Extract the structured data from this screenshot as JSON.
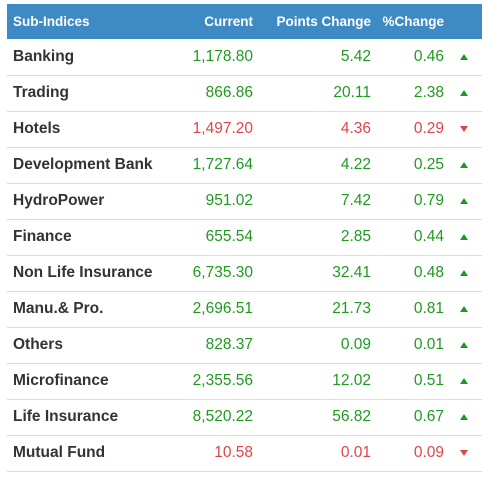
{
  "table": {
    "headers": {
      "name": "Sub-Indices",
      "current": "Current",
      "points_change": "Points Change",
      "pct_change": "%Change"
    },
    "rows": [
      {
        "name": "Banking",
        "current": "1,178.80",
        "points": "5.42",
        "pct": "0.46",
        "direction": "up"
      },
      {
        "name": "Trading",
        "current": "866.86",
        "points": "20.11",
        "pct": "2.38",
        "direction": "up"
      },
      {
        "name": "Hotels",
        "current": "1,497.20",
        "points": "4.36",
        "pct": "0.29",
        "direction": "down"
      },
      {
        "name": "Development Bank",
        "current": "1,727.64",
        "points": "4.22",
        "pct": "0.25",
        "direction": "up"
      },
      {
        "name": "HydroPower",
        "current": "951.02",
        "points": "7.42",
        "pct": "0.79",
        "direction": "up"
      },
      {
        "name": "Finance",
        "current": "655.54",
        "points": "2.85",
        "pct": "0.44",
        "direction": "up"
      },
      {
        "name": "Non Life Insurance",
        "current": "6,735.30",
        "points": "32.41",
        "pct": "0.48",
        "direction": "up"
      },
      {
        "name": "Manu.& Pro.",
        "current": "2,696.51",
        "points": "21.73",
        "pct": "0.81",
        "direction": "up"
      },
      {
        "name": "Others",
        "current": "828.37",
        "points": "0.09",
        "pct": "0.01",
        "direction": "up"
      },
      {
        "name": "Microfinance",
        "current": "2,355.56",
        "points": "12.02",
        "pct": "0.51",
        "direction": "up"
      },
      {
        "name": "Life Insurance",
        "current": "8,520.22",
        "points": "56.82",
        "pct": "0.67",
        "direction": "up"
      },
      {
        "name": "Mutual Fund",
        "current": "10.58",
        "points": "0.01",
        "pct": "0.09",
        "direction": "down"
      }
    ]
  },
  "colors": {
    "header_bg": "#3e8ac4",
    "up": "#1f9a1f",
    "down": "#e04545"
  },
  "icons": {
    "up": "triangle-up-icon",
    "down": "triangle-down-icon"
  }
}
